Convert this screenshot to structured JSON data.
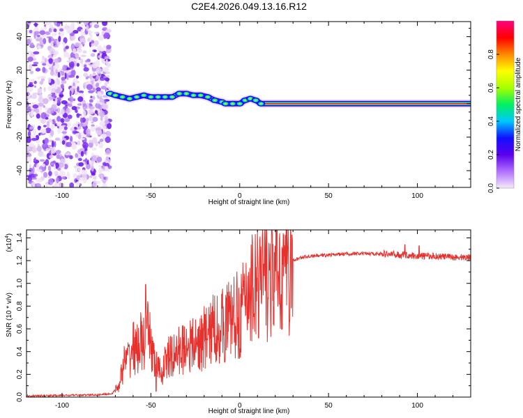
{
  "figure_title": "C2E4.2026.049.13.16.R12",
  "chart_data": [
    {
      "type": "heatmap",
      "title": "C2E4.2026.049.13.16.R12",
      "xlabel": "Height of straight line (km)",
      "ylabel": "Frequency (Hz)",
      "xlim": [
        -120,
        130
      ],
      "ylim": [
        -50,
        49
      ],
      "xticks": [
        -100,
        -50,
        0,
        50,
        100
      ],
      "xtick_labels": [
        "-100",
        "-50",
        "0",
        "50",
        "100"
      ],
      "yticks": [
        40,
        20,
        0,
        -20,
        -40
      ],
      "ytick_labels": [
        "40",
        "20",
        "0",
        "-20",
        "-40"
      ],
      "colorbar": {
        "label": "Normalized spectral amplitude",
        "range": [
          0,
          1
        ],
        "ticks": [
          0.0,
          0.2,
          0.4,
          0.6,
          0.8
        ],
        "tick_labels": [
          "0.0",
          "0.2",
          "0.4",
          "0.6",
          "0.8"
        ],
        "colors": [
          "#f6eaf9",
          "#b070ff",
          "#5b00ee",
          "#1010ff",
          "#00c8ff",
          "#00f060",
          "#a8ff00",
          "#ffff00",
          "#ff8800",
          "#ff0000",
          "#ff0080"
        ]
      },
      "noise_region_x": [
        -120,
        -73
      ],
      "carrier_track": {
        "x": [
          -73,
          -70,
          -66,
          -62,
          -58,
          -54,
          -50,
          -46,
          -42,
          -38,
          -34,
          -30,
          -26,
          -22,
          -18,
          -14,
          -10,
          -8,
          -4,
          0,
          3,
          6,
          9,
          12,
          20,
          40,
          60,
          80,
          100,
          130
        ],
        "frequency": [
          6,
          5,
          4,
          3,
          4,
          5,
          4,
          4,
          4,
          4,
          6,
          6,
          5,
          5,
          4,
          2,
          1,
          0,
          0,
          0,
          2,
          3,
          2,
          0,
          0,
          0,
          0,
          0,
          0,
          0
        ]
      }
    },
    {
      "type": "line",
      "title": "",
      "xlabel": "Height of straight line (km)",
      "ylabel": "SNR (10 * v/v)",
      "scale_label": "(x10",
      "scale_exponent": "4",
      "scale_suffix": ")",
      "xlim": [
        -120,
        130
      ],
      "ylim": [
        0,
        1.47
      ],
      "xticks": [
        -100,
        -50,
        0,
        50,
        100
      ],
      "xtick_labels": [
        "-100",
        "-50",
        "0",
        "50",
        "100"
      ],
      "yticks": [
        0.0,
        0.2,
        0.4,
        0.6,
        0.8,
        1.0,
        1.2,
        1.4
      ],
      "ytick_labels": [
        "0.0",
        "0.2",
        "0.4",
        "0.6",
        "0.8",
        "1.0",
        "1.2",
        "1.4"
      ],
      "series": [
        {
          "name": "SNR",
          "color": "#e8302c",
          "x": [
            -120,
            -80,
            -72,
            -68,
            -65,
            -62,
            -60,
            -58,
            -56,
            -54,
            -52,
            -50,
            -48,
            -46,
            -44,
            -42,
            -40,
            -38,
            -35,
            -30,
            -25,
            -20,
            -15,
            -10,
            -5,
            0,
            5,
            8,
            10,
            12,
            15,
            20,
            25,
            30,
            35,
            40,
            50,
            60,
            70,
            80,
            90,
            93,
            100,
            110,
            120,
            130
          ],
          "y": [
            0.01,
            0.02,
            0.03,
            0.1,
            0.3,
            0.35,
            0.45,
            0.4,
            0.5,
            0.45,
            0.55,
            0.5,
            0.3,
            0.25,
            0.2,
            0.3,
            0.35,
            0.35,
            0.4,
            0.45,
            0.45,
            0.5,
            0.6,
            0.62,
            0.7,
            0.72,
            0.9,
            1.0,
            1.05,
            1.0,
            1.05,
            1.08,
            1.15,
            1.2,
            1.23,
            1.24,
            1.25,
            1.26,
            1.26,
            1.26,
            1.25,
            1.25,
            1.24,
            1.24,
            1.23,
            1.23
          ],
          "peaks": [
            {
              "x": -53,
              "y": 0.99
            },
            {
              "x": -47,
              "y": 0.05
            },
            {
              "x": -30,
              "y": 0.6
            },
            {
              "x": -20,
              "y": 0.8
            },
            {
              "x": -15,
              "y": 0.9
            },
            {
              "x": 5,
              "y": 1.1
            },
            {
              "x": 10,
              "y": 1.47
            },
            {
              "x": 10.6,
              "y": 0.52
            },
            {
              "x": 93,
              "y": 1.34
            },
            {
              "x": 101,
              "y": 1.33
            }
          ]
        }
      ]
    }
  ]
}
